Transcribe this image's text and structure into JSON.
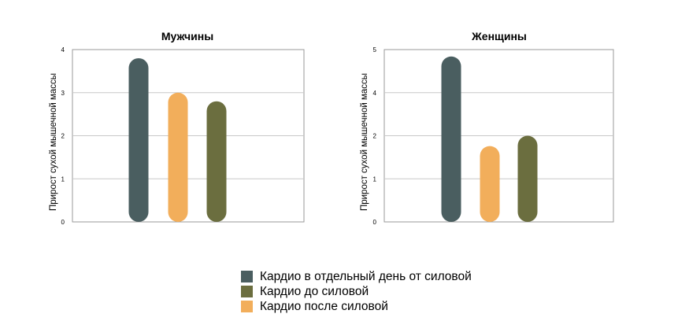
{
  "chart_data": [
    {
      "type": "bar",
      "title": "Мужчины",
      "ylabel": "Прирост сухой мышечной массы",
      "ylim": [
        0,
        4
      ],
      "yticks": [
        "0",
        "1",
        "2",
        "3",
        "4"
      ],
      "grid": true,
      "series": [
        {
          "name": "Кардио в отдельный день от силовой",
          "values": [
            3.8
          ]
        },
        {
          "name": "Кардио после силовой",
          "values": [
            3.0
          ]
        },
        {
          "name": "Кардио до силовой",
          "values": [
            2.8
          ]
        }
      ]
    },
    {
      "type": "bar",
      "title": "Женщины",
      "ylabel": "Прирост сухой мышечной массы",
      "ylim": [
        0,
        5
      ],
      "yticks": [
        "0",
        "1",
        "2",
        "4",
        "5"
      ],
      "grid": true,
      "series": [
        {
          "name": "Кардио в отдельный день от силовой",
          "values": [
            4.8
          ]
        },
        {
          "name": "Кардио после силовой",
          "values": [
            2.2
          ]
        },
        {
          "name": "Кардио до силовой",
          "values": [
            2.5
          ]
        }
      ]
    }
  ],
  "colors": {
    "separate_day": "#4a5e60",
    "before_strength": "#6b6e3f",
    "after_strength": "#f2ae5b",
    "grid": "#c8c8c8",
    "axis": "#9a9a9a"
  },
  "legend": {
    "items": [
      {
        "label": "Кардио в отдельный день от силовой",
        "color": "#4a5e60"
      },
      {
        "label": "Кардио до силовой",
        "color": "#6b6e3f"
      },
      {
        "label": "Кардио после силовой",
        "color": "#f2ae5b"
      }
    ]
  }
}
